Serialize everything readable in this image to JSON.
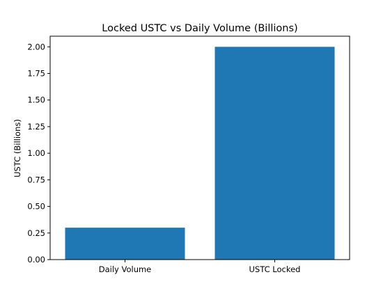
{
  "chart_data": {
    "type": "bar",
    "title": "Locked USTC vs Daily Volume (Billions)",
    "xlabel": "",
    "ylabel": "USTC (Billions)",
    "categories": [
      "Daily Volume",
      "USTC Locked"
    ],
    "values": [
      0.3,
      2.0
    ],
    "ylim": [
      0,
      2.1
    ],
    "yticks": [
      "0.00",
      "0.25",
      "0.50",
      "0.75",
      "1.00",
      "1.25",
      "1.50",
      "1.75",
      "2.00"
    ],
    "bar_color": "#1f77b4",
    "grid": false,
    "legend": "none"
  }
}
